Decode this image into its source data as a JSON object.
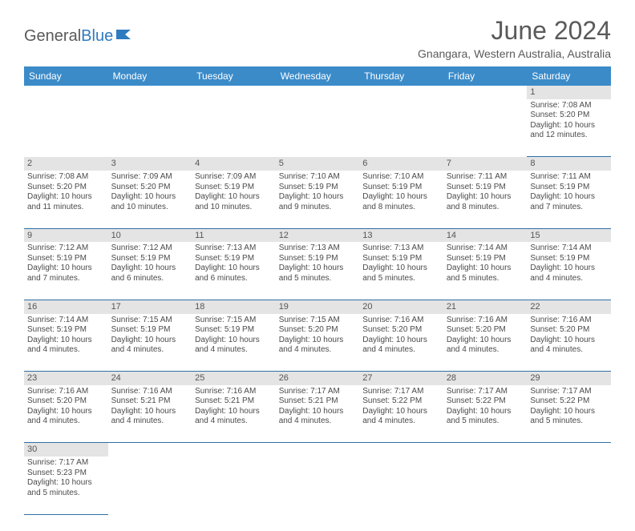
{
  "brand": {
    "part1": "General",
    "part2": "Blue"
  },
  "title": "June 2024",
  "location": "Gnangara, Western Australia, Australia",
  "colors": {
    "header_bg": "#3b8bc9",
    "header_text": "#ffffff",
    "daynum_bg": "#e4e4e4",
    "border": "#2f6fa8",
    "text": "#4a4a4a",
    "title_text": "#5a5a5a"
  },
  "dayNames": [
    "Sunday",
    "Monday",
    "Tuesday",
    "Wednesday",
    "Thursday",
    "Friday",
    "Saturday"
  ],
  "weeks": [
    {
      "nums": [
        "",
        "",
        "",
        "",
        "",
        "",
        "1"
      ],
      "cells": [
        null,
        null,
        null,
        null,
        null,
        null,
        {
          "sunrise": "Sunrise: 7:08 AM",
          "sunset": "Sunset: 5:20 PM",
          "day1": "Daylight: 10 hours",
          "day2": "and 12 minutes."
        }
      ]
    },
    {
      "nums": [
        "2",
        "3",
        "4",
        "5",
        "6",
        "7",
        "8"
      ],
      "cells": [
        {
          "sunrise": "Sunrise: 7:08 AM",
          "sunset": "Sunset: 5:20 PM",
          "day1": "Daylight: 10 hours",
          "day2": "and 11 minutes."
        },
        {
          "sunrise": "Sunrise: 7:09 AM",
          "sunset": "Sunset: 5:20 PM",
          "day1": "Daylight: 10 hours",
          "day2": "and 10 minutes."
        },
        {
          "sunrise": "Sunrise: 7:09 AM",
          "sunset": "Sunset: 5:19 PM",
          "day1": "Daylight: 10 hours",
          "day2": "and 10 minutes."
        },
        {
          "sunrise": "Sunrise: 7:10 AM",
          "sunset": "Sunset: 5:19 PM",
          "day1": "Daylight: 10 hours",
          "day2": "and 9 minutes."
        },
        {
          "sunrise": "Sunrise: 7:10 AM",
          "sunset": "Sunset: 5:19 PM",
          "day1": "Daylight: 10 hours",
          "day2": "and 8 minutes."
        },
        {
          "sunrise": "Sunrise: 7:11 AM",
          "sunset": "Sunset: 5:19 PM",
          "day1": "Daylight: 10 hours",
          "day2": "and 8 minutes."
        },
        {
          "sunrise": "Sunrise: 7:11 AM",
          "sunset": "Sunset: 5:19 PM",
          "day1": "Daylight: 10 hours",
          "day2": "and 7 minutes."
        }
      ]
    },
    {
      "nums": [
        "9",
        "10",
        "11",
        "12",
        "13",
        "14",
        "15"
      ],
      "cells": [
        {
          "sunrise": "Sunrise: 7:12 AM",
          "sunset": "Sunset: 5:19 PM",
          "day1": "Daylight: 10 hours",
          "day2": "and 7 minutes."
        },
        {
          "sunrise": "Sunrise: 7:12 AM",
          "sunset": "Sunset: 5:19 PM",
          "day1": "Daylight: 10 hours",
          "day2": "and 6 minutes."
        },
        {
          "sunrise": "Sunrise: 7:13 AM",
          "sunset": "Sunset: 5:19 PM",
          "day1": "Daylight: 10 hours",
          "day2": "and 6 minutes."
        },
        {
          "sunrise": "Sunrise: 7:13 AM",
          "sunset": "Sunset: 5:19 PM",
          "day1": "Daylight: 10 hours",
          "day2": "and 5 minutes."
        },
        {
          "sunrise": "Sunrise: 7:13 AM",
          "sunset": "Sunset: 5:19 PM",
          "day1": "Daylight: 10 hours",
          "day2": "and 5 minutes."
        },
        {
          "sunrise": "Sunrise: 7:14 AM",
          "sunset": "Sunset: 5:19 PM",
          "day1": "Daylight: 10 hours",
          "day2": "and 5 minutes."
        },
        {
          "sunrise": "Sunrise: 7:14 AM",
          "sunset": "Sunset: 5:19 PM",
          "day1": "Daylight: 10 hours",
          "day2": "and 4 minutes."
        }
      ]
    },
    {
      "nums": [
        "16",
        "17",
        "18",
        "19",
        "20",
        "21",
        "22"
      ],
      "cells": [
        {
          "sunrise": "Sunrise: 7:14 AM",
          "sunset": "Sunset: 5:19 PM",
          "day1": "Daylight: 10 hours",
          "day2": "and 4 minutes."
        },
        {
          "sunrise": "Sunrise: 7:15 AM",
          "sunset": "Sunset: 5:19 PM",
          "day1": "Daylight: 10 hours",
          "day2": "and 4 minutes."
        },
        {
          "sunrise": "Sunrise: 7:15 AM",
          "sunset": "Sunset: 5:19 PM",
          "day1": "Daylight: 10 hours",
          "day2": "and 4 minutes."
        },
        {
          "sunrise": "Sunrise: 7:15 AM",
          "sunset": "Sunset: 5:20 PM",
          "day1": "Daylight: 10 hours",
          "day2": "and 4 minutes."
        },
        {
          "sunrise": "Sunrise: 7:16 AM",
          "sunset": "Sunset: 5:20 PM",
          "day1": "Daylight: 10 hours",
          "day2": "and 4 minutes."
        },
        {
          "sunrise": "Sunrise: 7:16 AM",
          "sunset": "Sunset: 5:20 PM",
          "day1": "Daylight: 10 hours",
          "day2": "and 4 minutes."
        },
        {
          "sunrise": "Sunrise: 7:16 AM",
          "sunset": "Sunset: 5:20 PM",
          "day1": "Daylight: 10 hours",
          "day2": "and 4 minutes."
        }
      ]
    },
    {
      "nums": [
        "23",
        "24",
        "25",
        "26",
        "27",
        "28",
        "29"
      ],
      "cells": [
        {
          "sunrise": "Sunrise: 7:16 AM",
          "sunset": "Sunset: 5:20 PM",
          "day1": "Daylight: 10 hours",
          "day2": "and 4 minutes."
        },
        {
          "sunrise": "Sunrise: 7:16 AM",
          "sunset": "Sunset: 5:21 PM",
          "day1": "Daylight: 10 hours",
          "day2": "and 4 minutes."
        },
        {
          "sunrise": "Sunrise: 7:16 AM",
          "sunset": "Sunset: 5:21 PM",
          "day1": "Daylight: 10 hours",
          "day2": "and 4 minutes."
        },
        {
          "sunrise": "Sunrise: 7:17 AM",
          "sunset": "Sunset: 5:21 PM",
          "day1": "Daylight: 10 hours",
          "day2": "and 4 minutes."
        },
        {
          "sunrise": "Sunrise: 7:17 AM",
          "sunset": "Sunset: 5:22 PM",
          "day1": "Daylight: 10 hours",
          "day2": "and 4 minutes."
        },
        {
          "sunrise": "Sunrise: 7:17 AM",
          "sunset": "Sunset: 5:22 PM",
          "day1": "Daylight: 10 hours",
          "day2": "and 5 minutes."
        },
        {
          "sunrise": "Sunrise: 7:17 AM",
          "sunset": "Sunset: 5:22 PM",
          "day1": "Daylight: 10 hours",
          "day2": "and 5 minutes."
        }
      ]
    },
    {
      "nums": [
        "30",
        "",
        "",
        "",
        "",
        "",
        ""
      ],
      "cells": [
        {
          "sunrise": "Sunrise: 7:17 AM",
          "sunset": "Sunset: 5:23 PM",
          "day1": "Daylight: 10 hours",
          "day2": "and 5 minutes."
        },
        null,
        null,
        null,
        null,
        null,
        null
      ]
    }
  ]
}
